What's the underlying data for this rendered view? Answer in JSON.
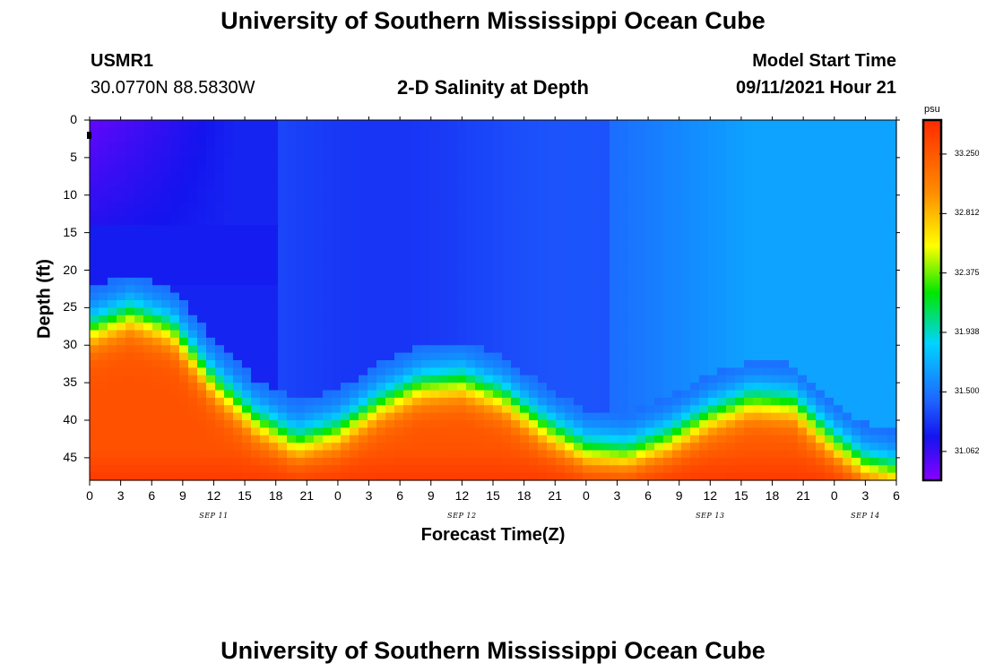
{
  "titles": {
    "top": "University of Southern Mississippi Ocean Cube",
    "bottom": "University of Southern Mississippi Ocean Cube"
  },
  "station": {
    "id": "USMR1",
    "location": "30.0770N  88.5830W"
  },
  "plot_title": "2-D Salinity at Depth",
  "model": {
    "label": "Model Start Time",
    "value": "09/11/2021 Hour 21"
  },
  "colorbar": {
    "unit": "psu",
    "labels": [
      "33.250",
      "32.812",
      "32.375",
      "31.938",
      "31.500",
      "31.062"
    ]
  },
  "colors": {
    "ramp": [
      "#8a00ff",
      "#1414ee",
      "#1e64ff",
      "#00d4ff",
      "#00e600",
      "#ffff00",
      "#ff8c00",
      "#ff2a00"
    ]
  },
  "chart_data": {
    "type": "heatmap",
    "title": "2-D Salinity at Depth",
    "xlabel": "Forecast Time(Z)",
    "ylabel": "Depth (ft)",
    "x_ticks": [
      "0",
      "3",
      "6",
      "9",
      "12",
      "15",
      "18",
      "21",
      "0",
      "3",
      "6",
      "9",
      "12",
      "15",
      "18",
      "21",
      "0",
      "3",
      "6",
      "9",
      "12",
      "15",
      "18",
      "21",
      "0",
      "3",
      "6"
    ],
    "x_range_hours": [
      0,
      78
    ],
    "y_ticks": [
      "0",
      "5",
      "10",
      "15",
      "20",
      "25",
      "30",
      "35",
      "40",
      "45"
    ],
    "y_range_ft": [
      0,
      48
    ],
    "date_labels": [
      {
        "text": "SEP 11",
        "hour": 12
      },
      {
        "text": "SEP 12",
        "hour": 36
      },
      {
        "text": "SEP 13",
        "hour": 60
      },
      {
        "text": "SEP 14",
        "hour": 75
      }
    ],
    "value_range_psu": [
      30.85,
      33.5
    ],
    "halocline_depth_ft": [
      [
        0,
        28.5
      ],
      [
        4,
        26.5
      ],
      [
        8,
        28.5
      ],
      [
        12,
        35.5
      ],
      [
        16,
        40.5
      ],
      [
        20,
        43.5
      ],
      [
        24,
        42.0
      ],
      [
        28,
        38.5
      ],
      [
        32,
        36.0
      ],
      [
        36,
        35.5
      ],
      [
        40,
        37.5
      ],
      [
        44,
        41.5
      ],
      [
        48,
        44.5
      ],
      [
        52,
        45.0
      ],
      [
        56,
        43.0
      ],
      [
        60,
        40.0
      ],
      [
        64,
        38.0
      ],
      [
        68,
        38.5
      ],
      [
        72,
        43.5
      ],
      [
        75,
        46.5
      ],
      [
        78,
        47.5
      ]
    ]
  }
}
